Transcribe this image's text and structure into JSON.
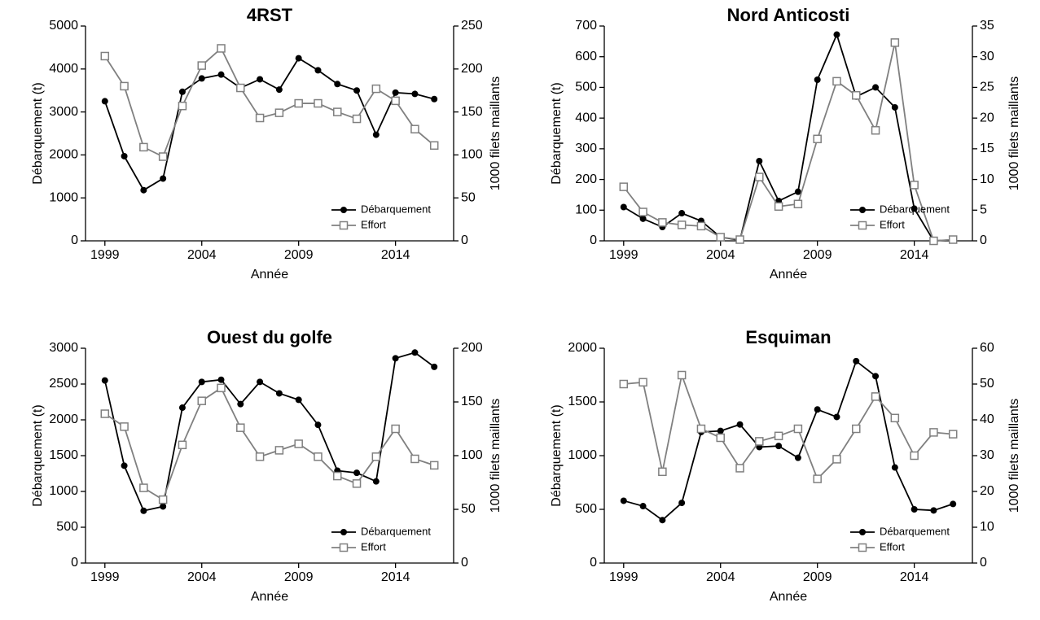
{
  "chart_data": [
    {
      "type": "line",
      "title": "4RST",
      "xlabel": "Année",
      "ylabel": "Débarquement (t)",
      "y2label": "1000 filets maillants",
      "x": [
        1999,
        2000,
        2001,
        2002,
        2003,
        2004,
        2005,
        2006,
        2007,
        2008,
        2009,
        2010,
        2011,
        2012,
        2013,
        2014,
        2015,
        2016
      ],
      "xlim": [
        1998,
        2017
      ],
      "xticks": [
        1999,
        2004,
        2009,
        2014
      ],
      "ylim": [
        0,
        5000
      ],
      "yticks": [
        0,
        1000,
        2000,
        3000,
        4000,
        5000
      ],
      "y2lim": [
        0,
        250
      ],
      "y2ticks": [
        0,
        50,
        100,
        150,
        200,
        250
      ],
      "legend": "lower right",
      "series": [
        {
          "name": "Débarquement",
          "color": "#000000",
          "marker": "circle",
          "values": [
            3250,
            1970,
            1180,
            1450,
            3470,
            3780,
            3870,
            3560,
            3760,
            3520,
            4250,
            3970,
            3650,
            3500,
            2470,
            3450,
            3420,
            3300
          ]
        },
        {
          "name": "Effort",
          "color": "#808080",
          "marker": "square",
          "axis": "y2",
          "values": [
            215,
            180,
            109,
            98,
            157,
            204,
            224,
            178,
            143,
            149,
            160,
            160,
            150,
            142,
            177,
            163,
            130,
            111
          ]
        }
      ]
    },
    {
      "type": "line",
      "title": "Nord Anticosti",
      "xlabel": "Année",
      "ylabel": "Débarquement (t)",
      "y2label": "1000 filets maillants",
      "x": [
        1999,
        2000,
        2001,
        2002,
        2003,
        2004,
        2005,
        2006,
        2007,
        2008,
        2009,
        2010,
        2011,
        2012,
        2013,
        2014,
        2015,
        2016
      ],
      "xlim": [
        1998,
        2017
      ],
      "xticks": [
        1999,
        2004,
        2009,
        2014
      ],
      "ylim": [
        0,
        700
      ],
      "yticks": [
        0,
        100,
        200,
        300,
        400,
        500,
        600,
        700
      ],
      "y2lim": [
        0,
        35
      ],
      "y2ticks": [
        0,
        5,
        10,
        15,
        20,
        25,
        30,
        35
      ],
      "legend": "lower right",
      "series": [
        {
          "name": "Débarquement",
          "color": "#000000",
          "marker": "circle",
          "values": [
            110,
            72,
            45,
            90,
            65,
            12,
            2,
            260,
            130,
            160,
            525,
            672,
            470,
            500,
            435,
            105,
            0,
            3
          ]
        },
        {
          "name": "Effort",
          "color": "#808080",
          "marker": "square",
          "axis": "y2",
          "values": [
            8.8,
            4.7,
            3.0,
            2.6,
            2.4,
            0.6,
            0.2,
            10.4,
            5.6,
            6.0,
            16.6,
            26.0,
            23.7,
            18.0,
            32.3,
            9.1,
            0,
            0.2
          ]
        }
      ]
    },
    {
      "type": "line",
      "title": "Ouest du golfe",
      "xlabel": "Année",
      "ylabel": "Débarquement (t)",
      "y2label": "1000 filets maillants",
      "x": [
        1999,
        2000,
        2001,
        2002,
        2003,
        2004,
        2005,
        2006,
        2007,
        2008,
        2009,
        2010,
        2011,
        2012,
        2013,
        2014,
        2015,
        2016
      ],
      "xlim": [
        1998,
        2017
      ],
      "xticks": [
        1999,
        2004,
        2009,
        2014
      ],
      "ylim": [
        0,
        3000
      ],
      "yticks": [
        0,
        500,
        1000,
        1500,
        2000,
        2500,
        3000
      ],
      "y2lim": [
        0,
        200
      ],
      "y2ticks": [
        0,
        50,
        100,
        150,
        200
      ],
      "legend": "lower right",
      "series": [
        {
          "name": "Débarquement",
          "color": "#000000",
          "marker": "circle",
          "values": [
            2550,
            1360,
            730,
            790,
            2170,
            2530,
            2560,
            2220,
            2530,
            2370,
            2280,
            1930,
            1290,
            1260,
            1140,
            2860,
            2940,
            2740
          ]
        },
        {
          "name": "Effort",
          "color": "#808080",
          "marker": "square",
          "axis": "y2",
          "values": [
            139,
            127,
            70,
            59,
            110,
            151,
            163,
            126,
            99,
            105,
            111,
            99,
            81,
            74,
            99,
            125,
            97,
            91
          ]
        }
      ]
    },
    {
      "type": "line",
      "title": "Esquiman",
      "xlabel": "Année",
      "ylabel": "Débarquement (t)",
      "y2label": "1000 filets maillants",
      "x": [
        1999,
        2000,
        2001,
        2002,
        2003,
        2004,
        2005,
        2006,
        2007,
        2008,
        2009,
        2010,
        2011,
        2012,
        2013,
        2014,
        2015,
        2016
      ],
      "xlim": [
        1998,
        2017
      ],
      "xticks": [
        1999,
        2004,
        2009,
        2014
      ],
      "ylim": [
        0,
        2000
      ],
      "yticks": [
        0,
        500,
        1000,
        1500,
        2000
      ],
      "y2lim": [
        0,
        60
      ],
      "y2ticks": [
        0,
        10,
        20,
        30,
        40,
        50,
        60
      ],
      "legend": "lower right",
      "series": [
        {
          "name": "Débarquement",
          "color": "#000000",
          "marker": "circle",
          "values": [
            580,
            530,
            400,
            560,
            1220,
            1230,
            1290,
            1080,
            1090,
            980,
            1430,
            1360,
            1880,
            1740,
            890,
            500,
            490,
            550
          ]
        },
        {
          "name": "Effort",
          "color": "#808080",
          "marker": "square",
          "axis": "y2",
          "values": [
            50,
            50.5,
            25.5,
            52.5,
            37.5,
            35,
            26.5,
            34,
            35.5,
            37.5,
            23.5,
            29,
            37.5,
            46.5,
            40.5,
            30,
            36.5,
            36
          ]
        }
      ]
    }
  ]
}
